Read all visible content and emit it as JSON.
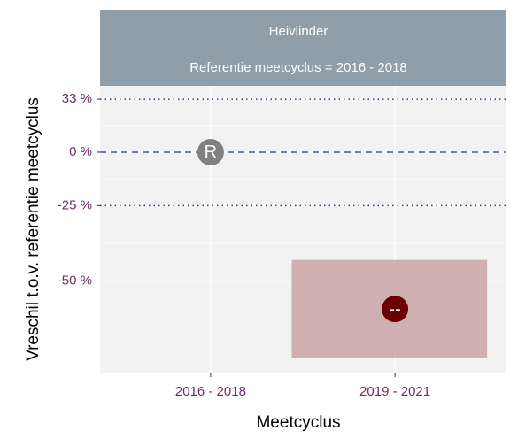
{
  "chart_data": {
    "type": "point_interval",
    "strip": [
      "Heivlinder",
      "Referentie meetcyclus =  2016 - 2018"
    ],
    "x_label": "Meetcyclus",
    "y_label": "Vreschil t.o.v. referentie meetcyclus",
    "categories": [
      "2016 - 2018",
      "2019 - 2021"
    ],
    "values": [
      0,
      -57
    ],
    "value_labels": [
      "R",
      "--"
    ],
    "point_colors": [
      "#808080",
      "#6b0000"
    ],
    "lower": [
      null,
      -67
    ],
    "upper": [
      null,
      -44
    ],
    "interval_color": "#c9a3a3",
    "yscale": "log",
    "ylim": [
      -69.6,
      42.9
    ],
    "yticks": [
      {
        "value": 33,
        "label": "33 %"
      },
      {
        "value": 0,
        "label": "0 %"
      },
      {
        "value": -25,
        "label": "-25 %"
      },
      {
        "value": -50,
        "label": "-50 %"
      }
    ],
    "reference_lines": [
      {
        "value": 33,
        "style": "dotted",
        "color": "#2b3f7a"
      },
      {
        "value": 0,
        "style": "dashed",
        "color": "#3a5a98"
      },
      {
        "value": -25,
        "style": "dotted",
        "color": "#2b3f7a"
      }
    ],
    "grid": true
  }
}
